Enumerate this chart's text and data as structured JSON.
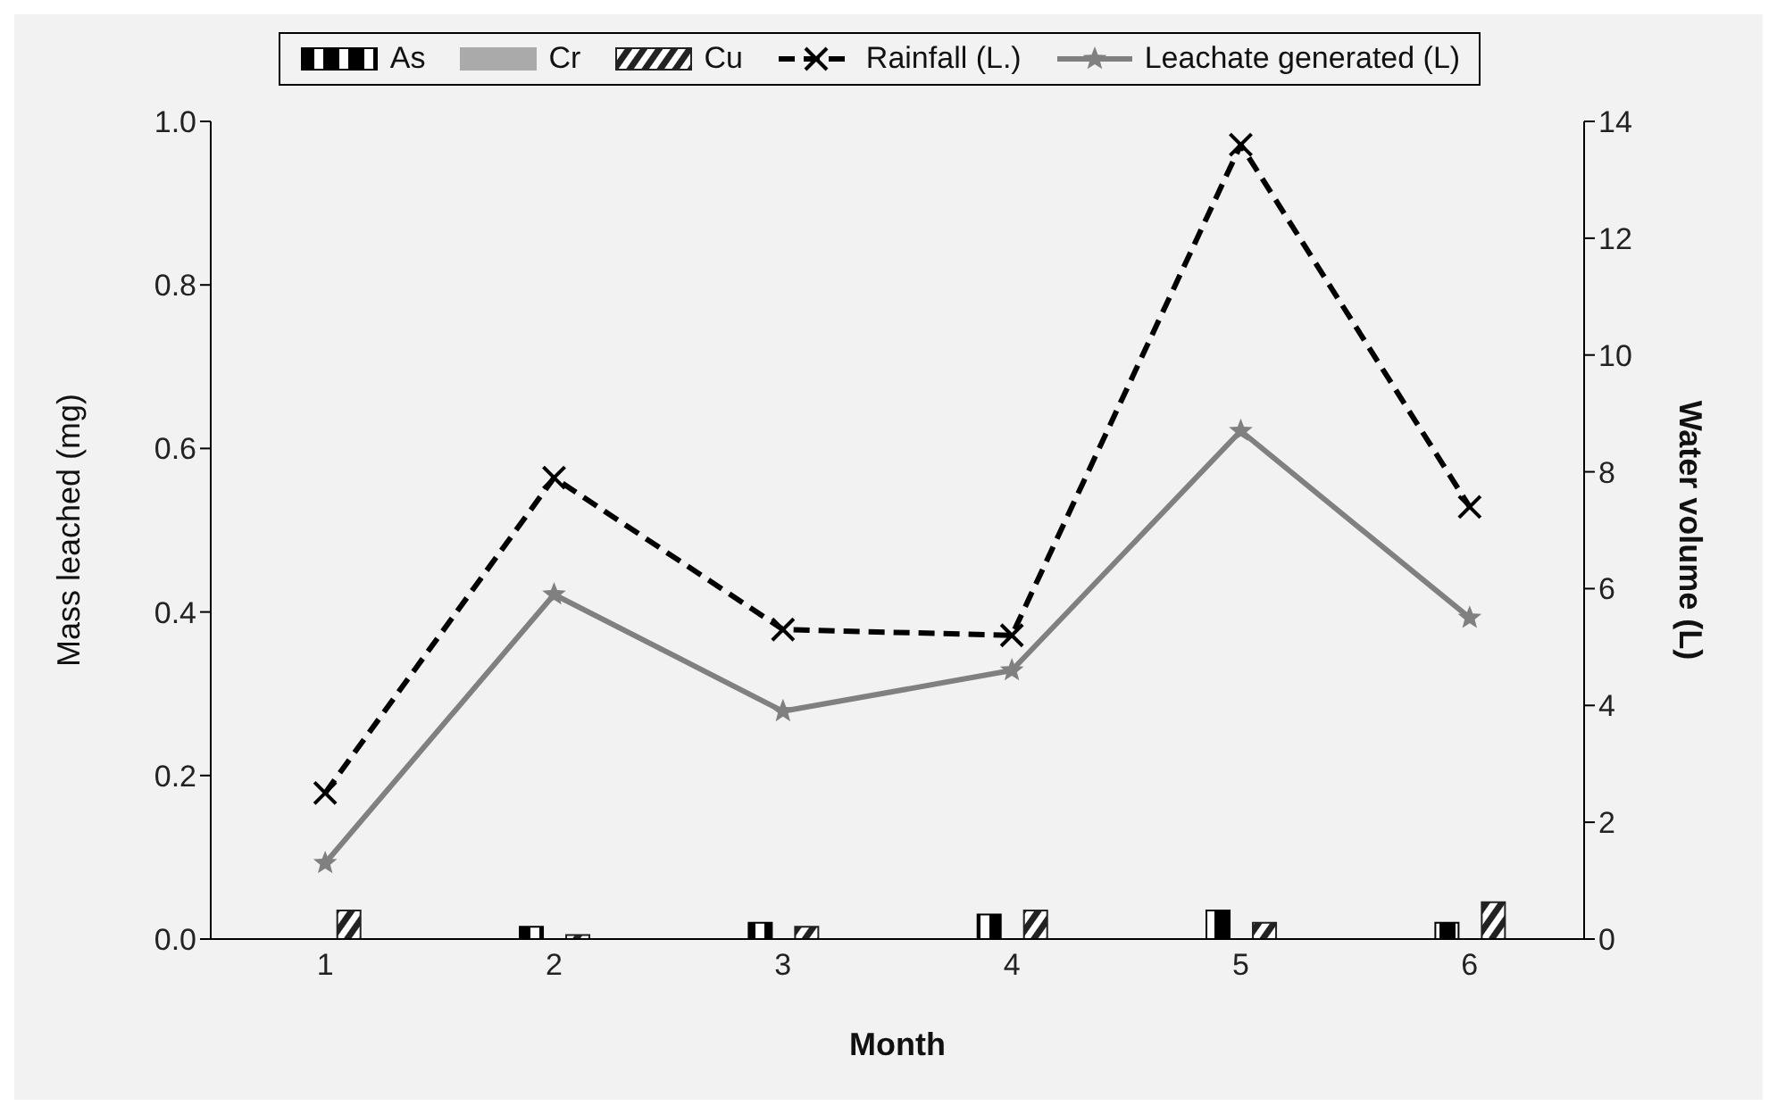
{
  "chart_data": {
    "type": "bar",
    "xlabel": "Month",
    "ylabel": "Mass leached (mg)",
    "y2label": "Water volume (L)",
    "categories": [
      "1",
      "2",
      "3",
      "4",
      "5",
      "6"
    ],
    "series": [
      {
        "name": "As",
        "color": "#000000",
        "values": [
          0,
          0.015,
          0.02,
          0.03,
          0.035,
          0.02
        ]
      },
      {
        "name": "Cr",
        "color": "#aaaaaa",
        "values": [
          0,
          0,
          0,
          0,
          0,
          0
        ]
      },
      {
        "name": "Cu",
        "color": "#222222",
        "values": [
          0.035,
          0.005,
          0.015,
          0.035,
          0.02,
          0.045
        ]
      },
      {
        "name": "Rainfall (L.)",
        "type": "line",
        "axis": "y2",
        "color": "#000000",
        "line_style": "dashed",
        "marker": "cross",
        "values": [
          2.5,
          7.9,
          5.3,
          5.2,
          13.6,
          7.4
        ]
      },
      {
        "name": "Leachate generated (L)",
        "type": "line",
        "axis": "y2",
        "color": "#808080",
        "line_style": "solid",
        "marker": "star",
        "values": [
          1.3,
          5.9,
          3.9,
          4.6,
          8.7,
          5.5
        ]
      }
    ],
    "ylim": [
      0,
      1
    ],
    "yticks": [
      {
        "value": 0,
        "label": "0.0"
      },
      {
        "value": 0.2,
        "label": "0.2"
      },
      {
        "value": 0.4,
        "label": "0.4"
      },
      {
        "value": 0.6,
        "label": "0.6"
      },
      {
        "value": 0.8,
        "label": "0.8"
      },
      {
        "value": 1,
        "label": "1.0"
      }
    ],
    "y2lim": [
      0,
      14
    ],
    "y2ticks": [
      0,
      2,
      4,
      6,
      8,
      10,
      12,
      14
    ],
    "grid": false,
    "legend": "top"
  }
}
